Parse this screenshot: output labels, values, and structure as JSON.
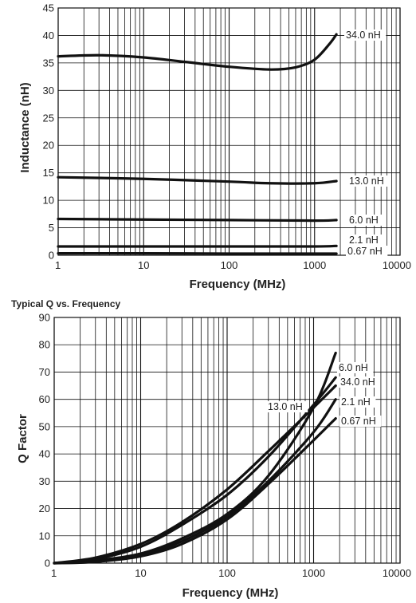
{
  "chart_data": [
    {
      "type": "line",
      "title": "",
      "xlabel": "Frequency (MHz)",
      "ylabel": "Inductance (nH)",
      "xscale": "log",
      "xlim": [
        1,
        10000
      ],
      "ylim": [
        0,
        45
      ],
      "xticks": [
        "1",
        "10",
        "100",
        "1000",
        "10000"
      ],
      "yticks": [
        "0",
        "5",
        "10",
        "15",
        "20",
        "25",
        "30",
        "35",
        "40",
        "45"
      ],
      "grid": true,
      "series": [
        {
          "name": "34.0 nH",
          "x": [
            1,
            3,
            10,
            30,
            100,
            300,
            600,
            1000,
            1500,
            1800
          ],
          "y": [
            36.2,
            36.4,
            36.0,
            35.2,
            34.3,
            33.8,
            34.2,
            35.6,
            38.5,
            40.2
          ]
        },
        {
          "name": "13.0 nH",
          "x": [
            1,
            10,
            100,
            300,
            1000,
            1800
          ],
          "y": [
            14.2,
            13.9,
            13.4,
            13.1,
            13.1,
            13.5
          ]
        },
        {
          "name": "6.0 nH",
          "x": [
            1,
            10,
            100,
            1000,
            1800
          ],
          "y": [
            6.6,
            6.5,
            6.4,
            6.3,
            6.4
          ]
        },
        {
          "name": "2.1 nH",
          "x": [
            1,
            10,
            100,
            1000,
            1800
          ],
          "y": [
            1.6,
            1.6,
            1.6,
            1.6,
            1.7
          ]
        },
        {
          "name": "0.67 nH",
          "x": [
            1,
            10,
            100,
            1000,
            1800
          ],
          "y": [
            0.35,
            0.35,
            0.3,
            0.3,
            0.3
          ]
        }
      ]
    },
    {
      "type": "line",
      "title": "Typical Q vs. Frequency",
      "xlabel": "Frequency (MHz)",
      "ylabel": "Q Factor",
      "xscale": "log",
      "xlim": [
        1,
        10000
      ],
      "ylim": [
        0,
        90
      ],
      "xticks": [
        "1",
        "10",
        "100",
        "1000",
        "10000"
      ],
      "yticks": [
        "0",
        "10",
        "20",
        "30",
        "40",
        "50",
        "60",
        "70",
        "80",
        "90"
      ],
      "grid": true,
      "series": [
        {
          "name": "6.0 nH",
          "x": [
            1,
            3,
            10,
            30,
            100,
            300,
            1000,
            1800
          ],
          "y": [
            0,
            1,
            3.5,
            9,
            18,
            32,
            57,
            77
          ]
        },
        {
          "name": "34.0 nH",
          "x": [
            1,
            3,
            10,
            30,
            100,
            300,
            1000,
            1800
          ],
          "y": [
            0,
            1.5,
            6,
            14,
            25,
            39,
            58,
            68
          ]
        },
        {
          "name": "13.0 nH",
          "x": [
            1,
            3,
            10,
            30,
            100,
            300,
            1000,
            1800
          ],
          "y": [
            0,
            2,
            7,
            15,
            27,
            41,
            57,
            65
          ]
        },
        {
          "name": "2.1 nH",
          "x": [
            1,
            3,
            10,
            30,
            100,
            300,
            1000,
            1800
          ],
          "y": [
            0,
            0.5,
            3,
            8,
            17,
            30,
            48,
            60
          ]
        },
        {
          "name": "0.67 nH",
          "x": [
            1,
            3,
            10,
            30,
            100,
            300,
            1000,
            1800
          ],
          "y": [
            0,
            0.5,
            2.5,
            7,
            16,
            29,
            45,
            53
          ]
        }
      ]
    }
  ]
}
